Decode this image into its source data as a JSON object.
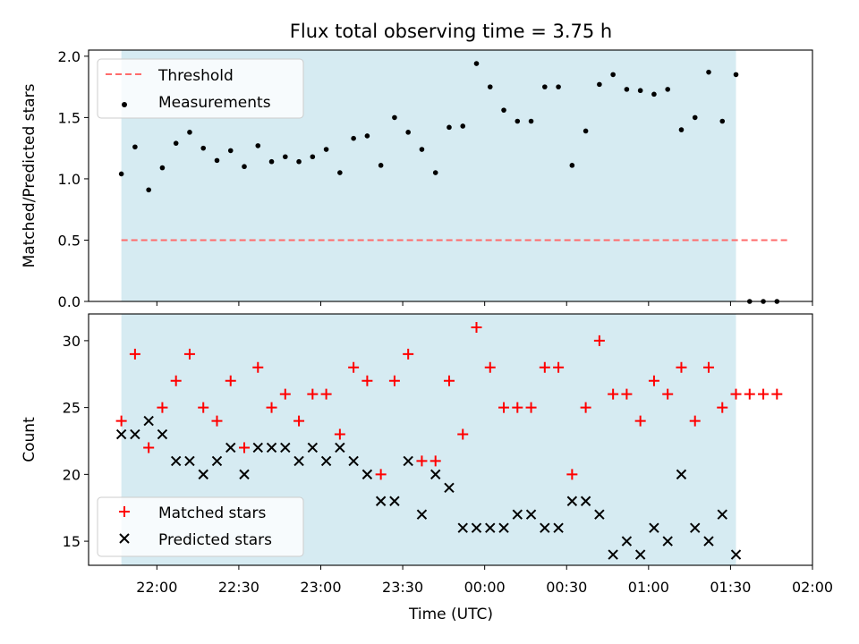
{
  "title": "Flux total observing time = 3.75 h",
  "xlabel": "Time (UTC)",
  "colors": {
    "threshold": "#ff6b6b",
    "measurement": "#000000",
    "matched": "#ff0000",
    "predicted": "#000000",
    "observing_span": "#add8e6"
  },
  "chart_data": [
    {
      "type": "scatter",
      "ylabel": "Matched/Predicted stars",
      "ylim": [
        0,
        2.05
      ],
      "yticks": [
        0.0,
        0.5,
        1.0,
        1.5,
        2.0
      ],
      "ytick_labels": [
        "0.0",
        "0.5",
        "1.0",
        "1.5",
        "2.0"
      ],
      "xlim": [
        "21:35",
        "02:00"
      ],
      "shaded_span": [
        "21:47",
        "01:32"
      ],
      "grid": false,
      "legend": "upper-left",
      "threshold": {
        "name": "Threshold",
        "value": 0.5,
        "x_range": [
          "21:47",
          "01:52"
        ]
      },
      "series": [
        {
          "name": "Measurements",
          "x": [
            "21:47",
            "21:52",
            "21:57",
            "22:02",
            "22:07",
            "22:12",
            "22:17",
            "22:22",
            "22:27",
            "22:32",
            "22:37",
            "22:42",
            "22:47",
            "22:52",
            "22:57",
            "23:02",
            "23:07",
            "23:12",
            "23:17",
            "23:22",
            "23:27",
            "23:32",
            "23:37",
            "23:42",
            "23:47",
            "23:52",
            "23:57",
            "00:02",
            "00:07",
            "00:12",
            "00:17",
            "00:22",
            "00:27",
            "00:32",
            "00:37",
            "00:42",
            "00:47",
            "00:52",
            "00:57",
            "01:02",
            "01:07",
            "01:12",
            "01:17",
            "01:22",
            "01:27",
            "01:32",
            "01:37",
            "01:42",
            "01:47"
          ],
          "y": [
            1.04,
            1.26,
            0.91,
            1.09,
            1.29,
            1.38,
            1.25,
            1.15,
            1.23,
            1.1,
            1.27,
            1.14,
            1.18,
            1.14,
            1.18,
            1.24,
            1.05,
            1.33,
            1.35,
            1.11,
            1.5,
            1.38,
            1.24,
            1.05,
            1.42,
            1.43,
            1.94,
            1.75,
            1.56,
            1.47,
            1.47,
            1.75,
            1.75,
            1.11,
            1.39,
            1.77,
            1.85,
            1.73,
            1.72,
            1.69,
            1.73,
            1.4,
            1.5,
            1.87,
            1.47,
            1.85,
            0.0,
            0.0,
            0.0
          ]
        }
      ]
    },
    {
      "type": "scatter",
      "ylabel": "Count",
      "ylim": [
        13.2,
        32.0
      ],
      "yticks": [
        15,
        20,
        25,
        30
      ],
      "ytick_labels": [
        "15",
        "20",
        "25",
        "30"
      ],
      "xlim": [
        "21:35",
        "02:00"
      ],
      "xticks": [
        "22:00",
        "22:30",
        "23:00",
        "23:30",
        "00:00",
        "00:30",
        "01:00",
        "01:30",
        "02:00"
      ],
      "shaded_span": [
        "21:47",
        "01:32"
      ],
      "grid": false,
      "legend": "lower-left",
      "series": [
        {
          "name": "Matched stars",
          "x": [
            "21:47",
            "21:52",
            "21:57",
            "22:02",
            "22:07",
            "22:12",
            "22:17",
            "22:22",
            "22:27",
            "22:32",
            "22:37",
            "22:42",
            "22:47",
            "22:52",
            "22:57",
            "23:02",
            "23:07",
            "23:12",
            "23:17",
            "23:22",
            "23:27",
            "23:32",
            "23:37",
            "23:42",
            "23:47",
            "23:52",
            "23:57",
            "00:02",
            "00:07",
            "00:12",
            "00:17",
            "00:22",
            "00:27",
            "00:32",
            "00:37",
            "00:42",
            "00:47",
            "00:52",
            "00:57",
            "01:02",
            "01:07",
            "01:12",
            "01:17",
            "01:22",
            "01:27",
            "01:32",
            "01:37",
            "01:42",
            "01:47"
          ],
          "y": [
            24,
            29,
            22,
            25,
            27,
            29,
            25,
            24,
            27,
            22,
            28,
            25,
            26,
            24,
            26,
            26,
            23,
            28,
            27,
            20,
            27,
            29,
            21,
            21,
            27,
            23,
            31,
            28,
            25,
            25,
            25,
            28,
            28,
            20,
            25,
            30,
            26,
            26,
            24,
            27,
            26,
            28,
            24,
            28,
            25,
            26,
            26,
            26,
            26
          ]
        },
        {
          "name": "Predicted stars",
          "x": [
            "21:47",
            "21:52",
            "21:57",
            "22:02",
            "22:07",
            "22:12",
            "22:17",
            "22:22",
            "22:27",
            "22:32",
            "22:37",
            "22:42",
            "22:47",
            "22:52",
            "22:57",
            "23:02",
            "23:07",
            "23:12",
            "23:17",
            "23:22",
            "23:27",
            "23:32",
            "23:37",
            "23:42",
            "23:47",
            "23:52",
            "23:57",
            "00:02",
            "00:07",
            "00:12",
            "00:17",
            "00:22",
            "00:27",
            "00:32",
            "00:37",
            "00:42",
            "00:47",
            "00:52",
            "00:57",
            "01:02",
            "01:07",
            "01:12",
            "01:17",
            "01:22",
            "01:27",
            "01:32"
          ],
          "y": [
            23,
            23,
            24,
            23,
            21,
            21,
            20,
            21,
            22,
            20,
            22,
            22,
            22,
            21,
            22,
            21,
            22,
            21,
            20,
            18,
            18,
            21,
            17,
            20,
            19,
            16,
            16,
            16,
            16,
            17,
            17,
            16,
            16,
            18,
            18,
            17,
            14,
            15,
            14,
            16,
            15,
            20,
            16,
            15,
            17,
            14
          ]
        }
      ]
    }
  ]
}
